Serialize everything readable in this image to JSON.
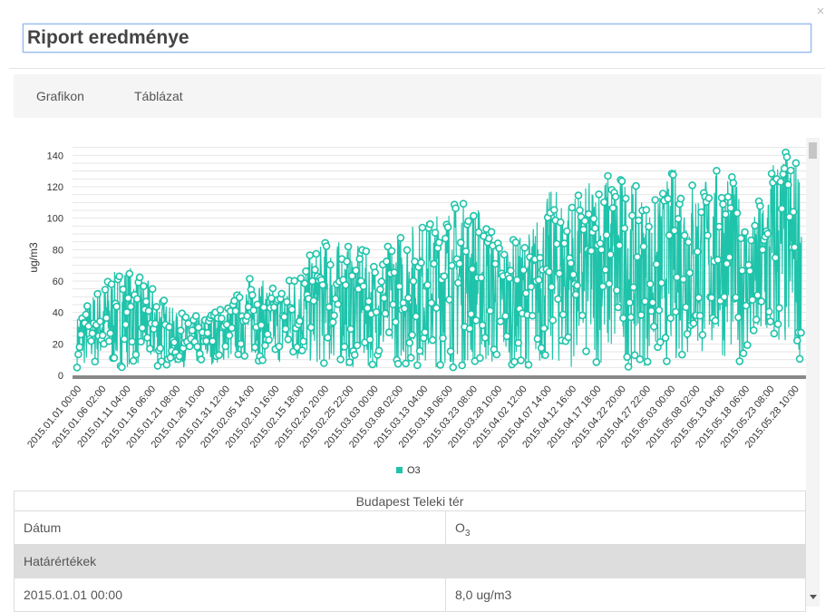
{
  "dialog": {
    "title_value": "Riport eredménye",
    "close_glyph": "×"
  },
  "tabs": [
    {
      "label": "Grafikon"
    },
    {
      "label": "Táblázat"
    }
  ],
  "chart_data": {
    "type": "line",
    "ylabel": "ug/m3",
    "ylim": [
      0,
      150
    ],
    "yticks": [
      0,
      20,
      40,
      60,
      80,
      100,
      120,
      140
    ],
    "xtick_labels": [
      "2015.01.01 00:00",
      "2015.01.06 02:00",
      "2015.01.11 04:00",
      "2015.01.16 06:00",
      "2015.01.21 08:00",
      "2015.01.26 10:00",
      "2015.01.31 12:00",
      "2015.02.05 14:00",
      "2015.02.10 16:00",
      "2015.02.15 18:00",
      "2015.02.20 20:00",
      "2015.02.25 22:00",
      "2015.03.03 00:00",
      "2015.03.08 02:00",
      "2015.03.13 04:00",
      "2015.03.18 06:00",
      "2015.03.23 08:00",
      "2015.03.28 10:00",
      "2015.04.02 12:00",
      "2015.04.07 14:00",
      "2015.04.12 16:00",
      "2015.04.17 18:00",
      "2015.04.22 20:00",
      "2015.04.27 22:00",
      "2015.05.03 00:00",
      "2015.05.08 02:00",
      "2015.05.13 04:00",
      "2015.05.18 06:00",
      "2015.05.23 08:00",
      "2015.05.28 10:00"
    ],
    "series": [
      {
        "name": "O3",
        "color": "#1fc3aa",
        "envelope": {
          "low": [
            5,
            5,
            5,
            4,
            5,
            6,
            8,
            10,
            7,
            6,
            5,
            4,
            5,
            6,
            5,
            4,
            4,
            4,
            5,
            4,
            5,
            5,
            5,
            6,
            8,
            10,
            10,
            8,
            8,
            10
          ],
          "high": [
            38,
            60,
            72,
            58,
            40,
            38,
            45,
            65,
            55,
            72,
            87,
            85,
            75,
            95,
            100,
            112,
            110,
            85,
            90,
            120,
            115,
            132,
            128,
            110,
            135,
            125,
            137,
            98,
            148,
            138
          ]
        }
      }
    ],
    "legend": "bottom-center",
    "grid": true
  },
  "table": {
    "station": "Budapest Teleki tér",
    "col_date": "Dátum",
    "col_o3_base": "O",
    "col_o3_sub": "3",
    "limits_label": "Határértékek",
    "rows": [
      {
        "date": "2015.01.01 00:00",
        "value": "8,0 ug/m3"
      }
    ]
  }
}
